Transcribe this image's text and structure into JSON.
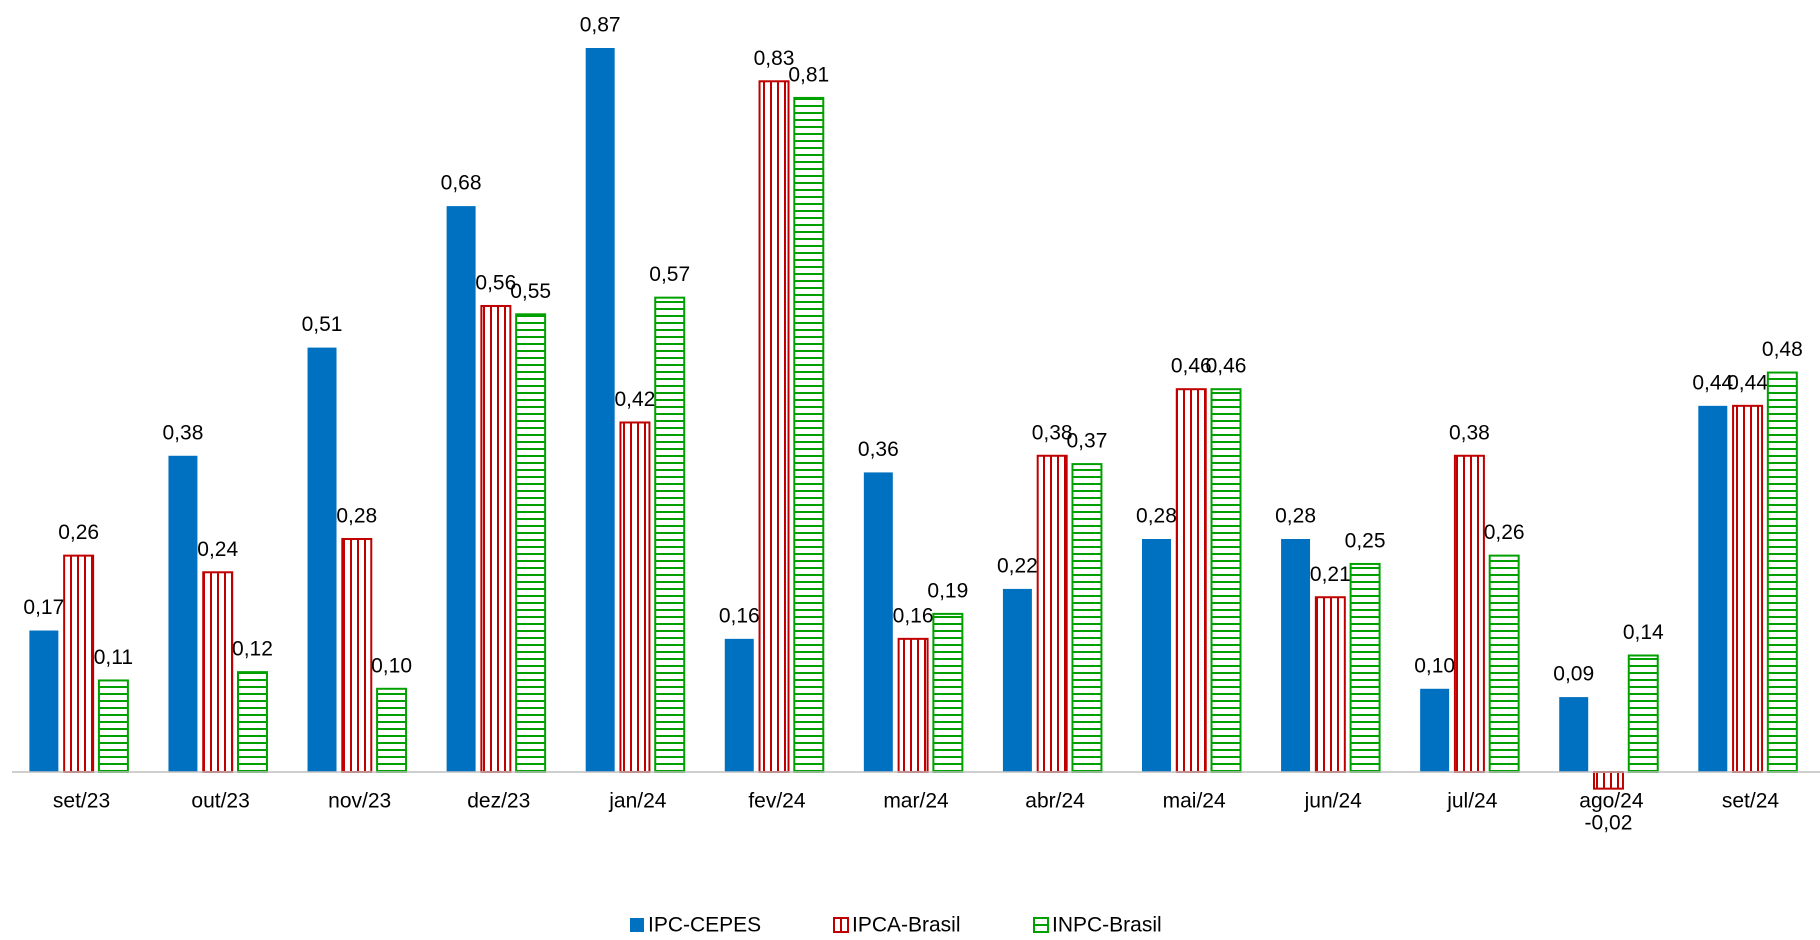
{
  "chart_data": {
    "type": "bar",
    "categories": [
      "set/23",
      "out/23",
      "nov/23",
      "dez/23",
      "jan/24",
      "fev/24",
      "mar/24",
      "abr/24",
      "mai/24",
      "jun/24",
      "jul/24",
      "ago/24",
      "set/24"
    ],
    "series": [
      {
        "name": "IPC-CEPES",
        "color": "#0070c0",
        "pattern": "solid",
        "values": [
          0.17,
          0.38,
          0.51,
          0.68,
          0.87,
          0.16,
          0.36,
          0.22,
          0.28,
          0.28,
          0.1,
          0.09,
          0.44
        ],
        "value_labels": [
          "0,17",
          "0,38",
          "0,51",
          "0,68",
          "0,87",
          "0,16",
          "0,36",
          "0,22",
          "0,28",
          "0,28",
          "0,10",
          "0,09",
          "0,44"
        ]
      },
      {
        "name": "IPCA-Brasil",
        "color": "#c00000",
        "pattern": "vertical",
        "values": [
          0.26,
          0.24,
          0.28,
          0.56,
          0.42,
          0.83,
          0.16,
          0.38,
          0.46,
          0.21,
          0.38,
          -0.02,
          0.44
        ],
        "value_labels": [
          "0,26",
          "0,24",
          "0,28",
          "0,56",
          "0,42",
          "0,83",
          "0,16",
          "0,38",
          "0,46",
          "0,21",
          "0,38",
          "-0,02",
          "0,44"
        ]
      },
      {
        "name": "INPC-Brasil",
        "color": "#00a000",
        "pattern": "horizontal",
        "values": [
          0.11,
          0.12,
          0.1,
          0.55,
          0.57,
          0.81,
          0.19,
          0.37,
          0.46,
          0.25,
          0.26,
          0.14,
          0.48
        ],
        "value_labels": [
          "0,11",
          "0,12",
          "0,10",
          "0,55",
          "0,57",
          "0,81",
          "0,19",
          "0,37",
          "0,46",
          "0,25",
          "0,26",
          "0,14",
          "0,48"
        ]
      }
    ],
    "legend": "bottom"
  }
}
